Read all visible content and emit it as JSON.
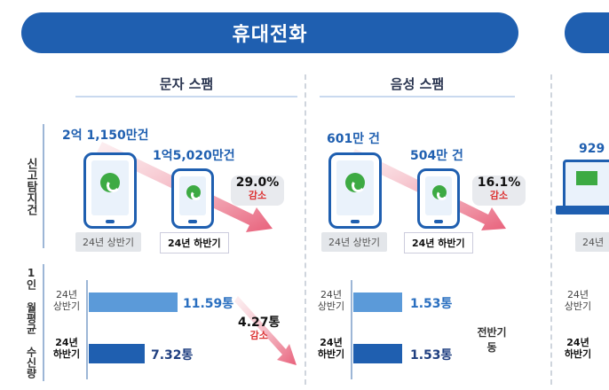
{
  "header": {
    "title": "휴대전화"
  },
  "sections": {
    "sms": {
      "title": "문자 스팸"
    },
    "voice": {
      "title": "음성 스팸"
    }
  },
  "row_labels": {
    "reports": "신고탐지건",
    "per_person": "1인 월평균 수신량"
  },
  "sms": {
    "h1_count": "2억 1,150만건",
    "h2_count": "1억5,020만건",
    "h1_tag": "24년 상반기",
    "h2_tag": "24년 하반기",
    "pct": "29.0%",
    "pct_label": "감소",
    "h1_row": "24년 상반기",
    "h2_row": "24년 하반기",
    "h1_val": "11.59통",
    "h2_val": "7.32통",
    "diff": "4.27통",
    "diff_label": "감소",
    "h1_frac": 1.0,
    "h2_frac": 0.63
  },
  "voice": {
    "h1_count": "601만 건",
    "h2_count": "504만 건",
    "h1_tag": "24년 상반기",
    "h2_tag": "24년 하반기",
    "pct": "16.1%",
    "pct_label": "감소",
    "h1_row": "24년 상반기",
    "h2_row": "24년 하반기",
    "h1_val": "1.53통",
    "h2_val": "1.53통",
    "note": "전반기 동",
    "h1_frac": 0.55,
    "h2_frac": 0.55
  },
  "cut": {
    "count": "929",
    "tag": "24년",
    "h1_row": "24년 상반기",
    "h2_row": "24년 하반기"
  },
  "colors": {
    "accent": "#1f5fb0",
    "light_bar": "#5b9ad9",
    "decrease": "#d33333",
    "phone_icon": "#3daa43"
  }
}
